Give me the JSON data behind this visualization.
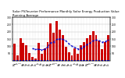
{
  "title": "Solar PV/Inverter Performance Monthly Solar Energy Production Value Running Average",
  "months": [
    "My",
    "Jn",
    "Jl",
    "Ag",
    "Sp",
    "Oc",
    "Nv",
    "Dc",
    "Jn",
    "Fb",
    "Mr",
    "Ap",
    "My",
    "Jn",
    "Jl",
    "Ag",
    "Sp",
    "Oc",
    "Nv",
    "Dc",
    "Jn",
    "Fb",
    "Mr",
    "Ap",
    "My",
    "Jn",
    "Jl",
    "Ag",
    "Sp",
    "Oc",
    "Nv",
    "Dc"
  ],
  "bar_values": [
    120,
    35,
    155,
    125,
    105,
    55,
    28,
    18,
    125,
    48,
    88,
    128,
    255,
    195,
    275,
    215,
    175,
    98,
    58,
    38,
    88,
    48,
    108,
    128,
    158,
    178,
    205,
    175,
    138,
    78,
    128,
    175
  ],
  "small_values": [
    8,
    8,
    8,
    8,
    8,
    8,
    8,
    8,
    8,
    8,
    8,
    8,
    8,
    8,
    8,
    8,
    8,
    8,
    8,
    8,
    8,
    8,
    8,
    8,
    8,
    8,
    8,
    8,
    8,
    8,
    8,
    8
  ],
  "running_avg": [
    null,
    null,
    null,
    null,
    null,
    null,
    85,
    78,
    82,
    75,
    80,
    95,
    125,
    130,
    148,
    152,
    148,
    138,
    118,
    102,
    92,
    82,
    88,
    98,
    112,
    122,
    138,
    142,
    138,
    128,
    132,
    142
  ],
  "bar_color": "#cc0000",
  "small_color": "#0000cc",
  "avg_color": "#0000cc",
  "ylim": [
    0,
    300
  ],
  "yticks": [
    50,
    100,
    150,
    200,
    250,
    300
  ],
  "background_color": "#ffffff",
  "grid_color": "#bbbbbb",
  "title_fontsize": 2.8,
  "tick_fontsize": 2.2,
  "bar_width": 0.75
}
